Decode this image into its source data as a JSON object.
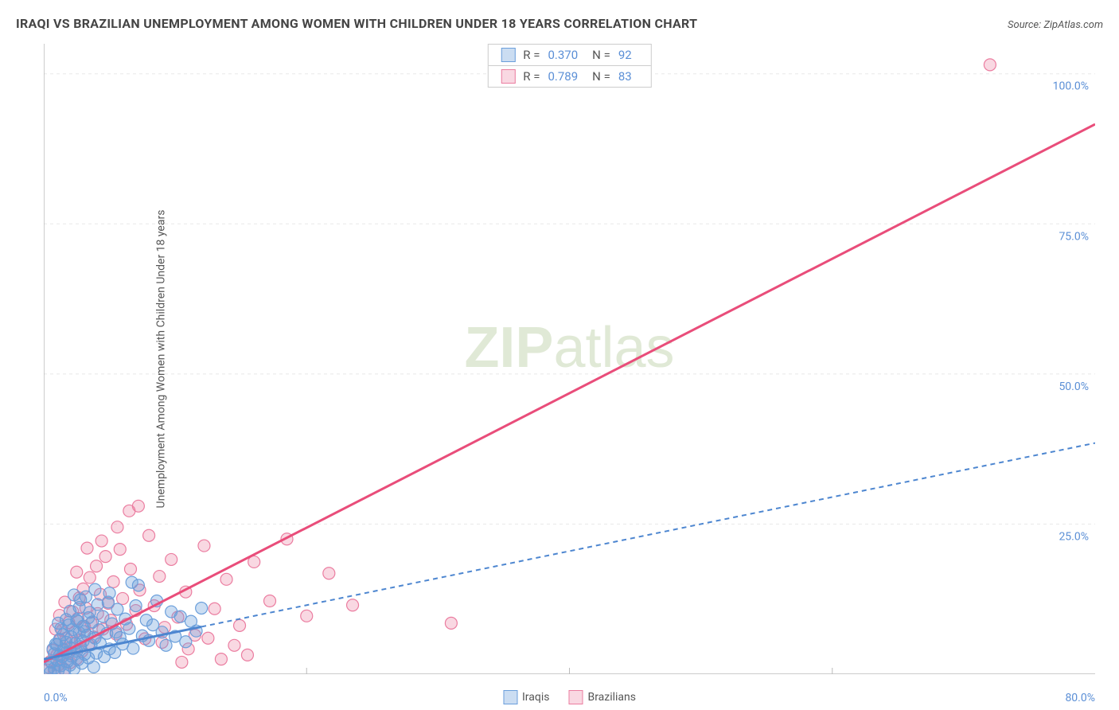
{
  "header": {
    "title": "IRAQI VS BRAZILIAN UNEMPLOYMENT AMONG WOMEN WITH CHILDREN UNDER 18 YEARS CORRELATION CHART",
    "source_prefix": "Source: ",
    "source_link": "ZipAtlas.com"
  },
  "chart": {
    "type": "scatter+regression",
    "ylabel": "Unemployment Among Women with Children Under 18 years",
    "xlim": [
      0,
      80
    ],
    "ylim": [
      0,
      105
    ],
    "x_tick_step": 20,
    "y_grid": [
      25,
      50,
      75,
      100
    ],
    "y_tick_labels": [
      "25.0%",
      "50.0%",
      "75.0%",
      "100.0%"
    ],
    "x_min_label": "0.0%",
    "x_max_label": "80.0%",
    "background_color": "#ffffff",
    "grid_color": "#e8e8e8",
    "axis_color": "#bbbbbb",
    "tick_label_color": "#5b8fd6",
    "watermark_text_bold": "ZIP",
    "watermark_text_light": "atlas",
    "watermark_color": "#dbe6cf",
    "series": {
      "iraqis": {
        "label": "Iraqis",
        "R": "0.370",
        "N": "92",
        "point_fill": "rgba(107,159,219,0.35)",
        "point_stroke": "#6b9fdb",
        "line_color": "#4d86d0",
        "line_solid_end_x": 12,
        "line_slope": 0.45,
        "line_intercept": 2.5,
        "dash": "6 5",
        "points": [
          [
            0.4,
            1.1
          ],
          [
            0.5,
            0.3
          ],
          [
            0.6,
            2.0
          ],
          [
            0.8,
            3.4
          ],
          [
            0.8,
            1.0
          ],
          [
            1.0,
            2.3
          ],
          [
            1.0,
            4.9
          ],
          [
            1.1,
            0.6
          ],
          [
            1.2,
            3.1
          ],
          [
            1.2,
            5.8
          ],
          [
            1.3,
            1.4
          ],
          [
            1.4,
            2.9
          ],
          [
            1.5,
            4.1
          ],
          [
            1.5,
            6.6
          ],
          [
            1.6,
            0.7
          ],
          [
            1.7,
            3.6
          ],
          [
            1.7,
            5.3
          ],
          [
            1.8,
            2.1
          ],
          [
            1.9,
            8.2
          ],
          [
            2.0,
            1.5
          ],
          [
            2.0,
            4.4
          ],
          [
            2.1,
            3.0
          ],
          [
            2.1,
            6.2
          ],
          [
            2.2,
            7.4
          ],
          [
            2.3,
            0.9
          ],
          [
            2.4,
            5.1
          ],
          [
            2.5,
            3.8
          ],
          [
            2.5,
            9.0
          ],
          [
            2.6,
            2.4
          ],
          [
            2.7,
            6.9
          ],
          [
            2.7,
            11.1
          ],
          [
            2.8,
            4.6
          ],
          [
            2.9,
            1.8
          ],
          [
            3.0,
            8.0
          ],
          [
            3.0,
            5.5
          ],
          [
            3.1,
            3.3
          ],
          [
            3.2,
            12.9
          ],
          [
            3.3,
            6.5
          ],
          [
            3.4,
            2.7
          ],
          [
            3.5,
            10.3
          ],
          [
            3.6,
            4.9
          ],
          [
            3.7,
            8.7
          ],
          [
            3.8,
            1.2
          ],
          [
            3.9,
            6.0
          ],
          [
            4.0,
            3.5
          ],
          [
            4.1,
            11.6
          ],
          [
            4.2,
            7.4
          ],
          [
            4.3,
            5.1
          ],
          [
            4.5,
            9.6
          ],
          [
            4.6,
            2.9
          ],
          [
            4.8,
            6.8
          ],
          [
            5.0,
            4.2
          ],
          [
            5.0,
            13.5
          ],
          [
            5.2,
            8.4
          ],
          [
            5.4,
            3.6
          ],
          [
            5.6,
            10.8
          ],
          [
            5.8,
            6.1
          ],
          [
            6.0,
            5.0
          ],
          [
            6.2,
            9.2
          ],
          [
            6.5,
            7.6
          ],
          [
            6.8,
            4.3
          ],
          [
            7.0,
            11.4
          ],
          [
            7.2,
            14.8
          ],
          [
            7.5,
            6.4
          ],
          [
            7.8,
            9.0
          ],
          [
            8.0,
            5.6
          ],
          [
            8.3,
            8.2
          ],
          [
            8.6,
            12.2
          ],
          [
            9.0,
            7.0
          ],
          [
            9.3,
            4.8
          ],
          [
            9.7,
            10.4
          ],
          [
            10.0,
            6.3
          ],
          [
            10.4,
            9.6
          ],
          [
            10.8,
            5.4
          ],
          [
            11.2,
            8.8
          ],
          [
            11.6,
            7.2
          ],
          [
            12.0,
            11.0
          ],
          [
            2.0,
            10.5
          ],
          [
            2.8,
            12.4
          ],
          [
            3.4,
            9.4
          ],
          [
            1.3,
            7.6
          ],
          [
            1.7,
            9.1
          ],
          [
            4.9,
            12.0
          ],
          [
            5.5,
            7.0
          ],
          [
            6.7,
            15.3
          ],
          [
            3.9,
            14.1
          ],
          [
            0.9,
            5.0
          ],
          [
            1.1,
            8.5
          ],
          [
            2.3,
            13.2
          ],
          [
            2.6,
            8.8
          ],
          [
            3.1,
            7.1
          ],
          [
            0.7,
            4.2
          ]
        ]
      },
      "brazilians": {
        "label": "Brazilians",
        "R": "0.789",
        "N": "83",
        "point_fill": "rgba(235,125,160,0.30)",
        "point_stroke": "#eb7da0",
        "line_color": "#e94d7a",
        "line_slope": 1.12,
        "line_intercept": 2.0,
        "dash": "none",
        "points": [
          [
            0.3,
            0.7
          ],
          [
            0.5,
            2.1
          ],
          [
            0.7,
            4.0
          ],
          [
            0.8,
            0.5
          ],
          [
            1.0,
            3.2
          ],
          [
            1.1,
            1.5
          ],
          [
            1.2,
            5.6
          ],
          [
            1.3,
            2.7
          ],
          [
            1.4,
            7.3
          ],
          [
            1.5,
            4.1
          ],
          [
            1.6,
            0.8
          ],
          [
            1.7,
            6.0
          ],
          [
            1.8,
            3.5
          ],
          [
            1.9,
            8.6
          ],
          [
            2.0,
            1.9
          ],
          [
            2.1,
            5.2
          ],
          [
            2.2,
            10.4
          ],
          [
            2.3,
            4.3
          ],
          [
            2.4,
            7.1
          ],
          [
            2.5,
            2.6
          ],
          [
            2.6,
            9.3
          ],
          [
            2.7,
            12.7
          ],
          [
            2.8,
            5.7
          ],
          [
            2.9,
            3.8
          ],
          [
            3.0,
            14.2
          ],
          [
            3.1,
            7.9
          ],
          [
            3.2,
            11.0
          ],
          [
            3.4,
            4.9
          ],
          [
            3.5,
            16.1
          ],
          [
            3.6,
            8.5
          ],
          [
            3.8,
            6.2
          ],
          [
            4.0,
            18.0
          ],
          [
            4.1,
            10.1
          ],
          [
            4.3,
            13.3
          ],
          [
            4.5,
            7.5
          ],
          [
            4.7,
            19.6
          ],
          [
            4.9,
            11.8
          ],
          [
            5.1,
            9.0
          ],
          [
            5.3,
            15.4
          ],
          [
            5.5,
            6.7
          ],
          [
            5.8,
            20.8
          ],
          [
            6.0,
            12.6
          ],
          [
            6.3,
            8.3
          ],
          [
            6.6,
            17.5
          ],
          [
            7.0,
            10.6
          ],
          [
            7.3,
            14.0
          ],
          [
            7.7,
            5.9
          ],
          [
            8.0,
            23.1
          ],
          [
            8.4,
            11.4
          ],
          [
            8.8,
            16.3
          ],
          [
            9.2,
            7.8
          ],
          [
            9.7,
            19.1
          ],
          [
            10.2,
            9.5
          ],
          [
            10.8,
            13.7
          ],
          [
            11.5,
            6.5
          ],
          [
            12.2,
            21.4
          ],
          [
            13.0,
            10.9
          ],
          [
            13.9,
            15.8
          ],
          [
            14.9,
            8.1
          ],
          [
            16.0,
            18.7
          ],
          [
            17.2,
            12.2
          ],
          [
            18.5,
            22.5
          ],
          [
            20.0,
            9.7
          ],
          [
            21.7,
            16.8
          ],
          [
            23.5,
            11.5
          ],
          [
            7.2,
            28.0
          ],
          [
            4.4,
            22.2
          ],
          [
            3.3,
            21.0
          ],
          [
            5.6,
            24.5
          ],
          [
            2.5,
            17.0
          ],
          [
            1.6,
            12.0
          ],
          [
            1.2,
            9.8
          ],
          [
            0.9,
            7.5
          ],
          [
            6.5,
            27.2
          ],
          [
            9.0,
            5.3
          ],
          [
            11.0,
            4.2
          ],
          [
            12.5,
            6.0
          ],
          [
            14.5,
            4.8
          ],
          [
            31.0,
            8.5
          ],
          [
            10.5,
            2.0
          ],
          [
            13.5,
            2.5
          ],
          [
            15.5,
            3.2
          ],
          [
            72.0,
            101.5
          ]
        ]
      }
    }
  }
}
